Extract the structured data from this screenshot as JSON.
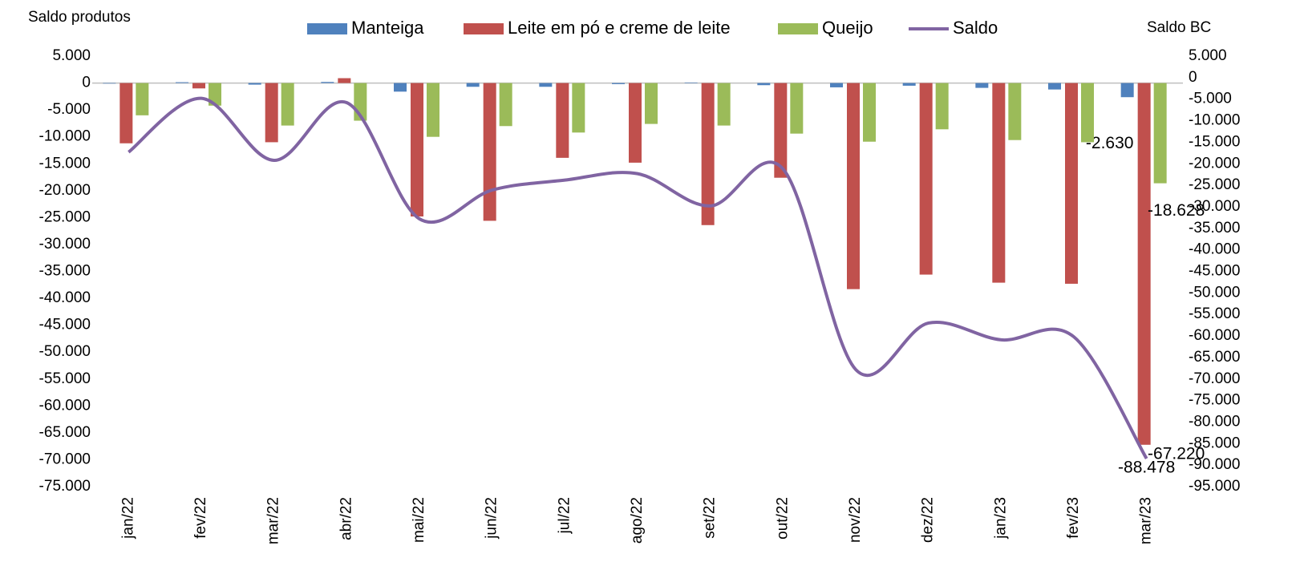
{
  "chart_data": {
    "type": "bar",
    "y_label": "Saldo produtos",
    "y2_label": "Saldo BC",
    "categories": [
      "jan/22",
      "fev/22",
      "mar/22",
      "abr/22",
      "mai/22",
      "jun/22",
      "jul/22",
      "ago/22",
      "set/22",
      "out/22",
      "nov/22",
      "dez/22",
      "jan/23",
      "fev/23",
      "mar/23"
    ],
    "series": [
      {
        "name": "Manteiga",
        "type": "bar",
        "color": "#4f81bd",
        "values": [
          -100,
          150,
          -300,
          200,
          -1600,
          -700,
          -700,
          -200,
          100,
          -400,
          -800,
          -500,
          -900,
          -1200,
          -2630
        ],
        "value_labels": [
          null,
          null,
          null,
          null,
          null,
          null,
          null,
          null,
          null,
          null,
          null,
          null,
          null,
          null,
          "-2.630"
        ]
      },
      {
        "name": "Leite em pó e creme de leite",
        "type": "bar",
        "color": "#c0504d",
        "values": [
          -11200,
          -1000,
          -11000,
          900,
          -24800,
          -25600,
          -13900,
          -14800,
          -26400,
          -17600,
          -38300,
          -35600,
          -37100,
          -37300,
          -67220
        ],
        "value_labels": [
          null,
          null,
          null,
          null,
          null,
          null,
          null,
          null,
          null,
          null,
          null,
          null,
          null,
          null,
          "-67.220"
        ]
      },
      {
        "name": "Queijo",
        "type": "bar",
        "color": "#9bbb59",
        "values": [
          -6000,
          -4200,
          -7900,
          -7000,
          -10000,
          -8000,
          -9200,
          -7600,
          -7900,
          -9400,
          -10900,
          -8600,
          -10600,
          -11000,
          -18628
        ],
        "value_labels": [
          null,
          null,
          null,
          null,
          null,
          null,
          null,
          null,
          null,
          null,
          null,
          null,
          null,
          null,
          "-18.628"
        ]
      },
      {
        "name": "Saldo",
        "type": "line",
        "axis": "y2",
        "color": "#8064a2",
        "values": [
          -17300,
          -4800,
          -19200,
          -5800,
          -32800,
          -26100,
          -23800,
          -22300,
          -29800,
          -21200,
          -67800,
          -57000,
          -60900,
          -60200,
          -88478
        ],
        "value_labels": [
          null,
          null,
          null,
          null,
          null,
          null,
          null,
          null,
          null,
          null,
          null,
          null,
          null,
          null,
          "-88.478"
        ]
      }
    ],
    "ylim": [
      -75000,
      5000
    ],
    "yticks": [
      {
        "value": 5000,
        "label": "5.000"
      },
      0,
      {
        "value": -5000,
        "label": "-5.000"
      },
      {
        "value": -10000,
        "label": "-10.000"
      },
      {
        "value": -15000,
        "label": "-15.000"
      },
      {
        "value": -20000,
        "label": "-20.000"
      },
      {
        "value": -25000,
        "label": "-25.000"
      },
      {
        "value": -30000,
        "label": "-30.000"
      },
      {
        "value": -35000,
        "label": "-35.000"
      },
      {
        "value": -40000,
        "label": "-40.000"
      },
      {
        "value": -45000,
        "label": "-45.000"
      },
      {
        "value": -50000,
        "label": "-50.000"
      },
      {
        "value": -55000,
        "label": "-55.000"
      },
      {
        "value": -60000,
        "label": "-60.000"
      },
      {
        "value": -65000,
        "label": "-65.000"
      },
      {
        "value": -70000,
        "label": "-70.000"
      },
      {
        "value": -75000,
        "label": "-75.000"
      }
    ],
    "y2lim": [
      -95000,
      5000
    ],
    "y2ticks": [
      {
        "value": 5000,
        "label": "5.000"
      },
      0,
      {
        "value": -5000,
        "label": "-5.000"
      },
      {
        "value": -10000,
        "label": "-10.000"
      },
      {
        "value": -15000,
        "label": "-15.000"
      },
      {
        "value": -20000,
        "label": "-20.000"
      },
      {
        "value": -25000,
        "label": "-25.000"
      },
      {
        "value": -30000,
        "label": "-30.000"
      },
      {
        "value": -35000,
        "label": "-35.000"
      },
      {
        "value": -40000,
        "label": "-40.000"
      },
      {
        "value": -45000,
        "label": "-45.000"
      },
      {
        "value": -50000,
        "label": "-50.000"
      },
      {
        "value": -55000,
        "label": "-55.000"
      },
      {
        "value": -60000,
        "label": "-60.000"
      },
      {
        "value": -65000,
        "label": "-65.000"
      },
      {
        "value": -70000,
        "label": "-70.000"
      },
      {
        "value": -75000,
        "label": "-75.000"
      },
      {
        "value": -80000,
        "label": "-80.000"
      },
      {
        "value": -85000,
        "label": "-85.000"
      },
      {
        "value": -90000,
        "label": "-90.000"
      },
      {
        "value": -95000,
        "label": "-95.000"
      }
    ],
    "legend": "top"
  }
}
